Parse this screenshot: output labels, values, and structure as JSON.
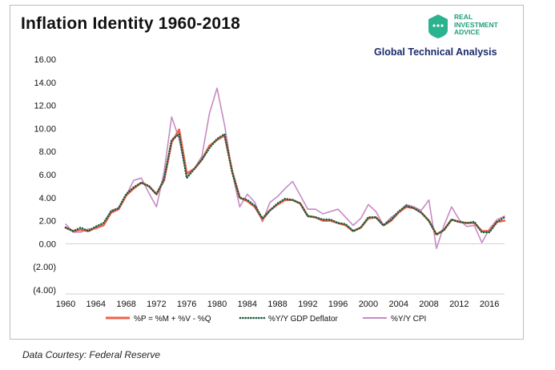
{
  "title": "Inflation Identity 1960-2018",
  "brand": {
    "line1": "REAL",
    "line2": "INVESTMENT",
    "line3": "ADVICE",
    "color": "#1f9e7a"
  },
  "subtitle": "Global Technical Analysis",
  "footnote": "Data Courtesy: Federal Reserve",
  "chart_data": {
    "type": "line",
    "xlim": [
      1960,
      2018
    ],
    "ylim": [
      -4,
      16
    ],
    "x_ticks": [
      1960,
      1964,
      1968,
      1972,
      1976,
      1980,
      1984,
      1988,
      1992,
      1996,
      2000,
      2004,
      2008,
      2012,
      2016
    ],
    "y_ticks": [
      -4,
      -2,
      0,
      2,
      4,
      6,
      8,
      10,
      12,
      14,
      16
    ],
    "y_tick_labels": [
      "(4.00)",
      "(2.00)",
      "0.00",
      "2.00",
      "4.00",
      "6.00",
      "8.00",
      "10.00",
      "12.00",
      "14.00",
      "16.00"
    ],
    "grid": false,
    "legend_position": "bottom",
    "series": [
      {
        "name": "%P = %M + %V - %Q",
        "color": "#f0604a",
        "style": "solid",
        "points": [
          [
            1960,
            1.4
          ],
          [
            1961,
            1.1
          ],
          [
            1962,
            1.2
          ],
          [
            1963,
            1.1
          ],
          [
            1964,
            1.4
          ],
          [
            1965,
            1.6
          ],
          [
            1966,
            2.7
          ],
          [
            1967,
            3.0
          ],
          [
            1968,
            4.2
          ],
          [
            1969,
            4.8
          ],
          [
            1970,
            5.3
          ],
          [
            1971,
            5.0
          ],
          [
            1972,
            4.3
          ],
          [
            1973,
            5.5
          ],
          [
            1974,
            8.8
          ],
          [
            1975,
            9.9
          ],
          [
            1976,
            6.1
          ],
          [
            1977,
            6.5
          ],
          [
            1978,
            7.3
          ],
          [
            1979,
            8.5
          ],
          [
            1980,
            9.0
          ],
          [
            1981,
            9.4
          ],
          [
            1982,
            6.3
          ],
          [
            1983,
            4.0
          ],
          [
            1984,
            3.7
          ],
          [
            1985,
            3.2
          ],
          [
            1986,
            2.1
          ],
          [
            1987,
            2.9
          ],
          [
            1988,
            3.4
          ],
          [
            1989,
            3.8
          ],
          [
            1990,
            3.8
          ],
          [
            1991,
            3.5
          ],
          [
            1992,
            2.4
          ],
          [
            1993,
            2.3
          ],
          [
            1994,
            2.0
          ],
          [
            1995,
            2.0
          ],
          [
            1996,
            1.8
          ],
          [
            1997,
            1.6
          ],
          [
            1998,
            1.1
          ],
          [
            1999,
            1.4
          ],
          [
            2000,
            2.2
          ],
          [
            2001,
            2.3
          ],
          [
            2002,
            1.6
          ],
          [
            2003,
            2.0
          ],
          [
            2004,
            2.7
          ],
          [
            2005,
            3.2
          ],
          [
            2006,
            3.1
          ],
          [
            2007,
            2.7
          ],
          [
            2008,
            2.0
          ],
          [
            2009,
            0.8
          ],
          [
            2010,
            1.2
          ],
          [
            2011,
            2.1
          ],
          [
            2012,
            1.9
          ],
          [
            2013,
            1.8
          ],
          [
            2014,
            1.8
          ],
          [
            2015,
            1.1
          ],
          [
            2016,
            1.1
          ],
          [
            2017,
            1.9
          ],
          [
            2018,
            2.0
          ]
        ]
      },
      {
        "name": "%Y/Y GDP Deflator",
        "color": "#1d5c3c",
        "style": "dotted",
        "points": [
          [
            1960,
            1.4
          ],
          [
            1961,
            1.1
          ],
          [
            1962,
            1.4
          ],
          [
            1963,
            1.1
          ],
          [
            1964,
            1.5
          ],
          [
            1965,
            1.8
          ],
          [
            1966,
            2.8
          ],
          [
            1967,
            3.1
          ],
          [
            1968,
            4.3
          ],
          [
            1969,
            4.9
          ],
          [
            1970,
            5.3
          ],
          [
            1971,
            5.0
          ],
          [
            1972,
            4.3
          ],
          [
            1973,
            5.6
          ],
          [
            1974,
            9.0
          ],
          [
            1975,
            9.5
          ],
          [
            1976,
            5.7
          ],
          [
            1977,
            6.5
          ],
          [
            1978,
            7.3
          ],
          [
            1979,
            8.3
          ],
          [
            1980,
            9.1
          ],
          [
            1981,
            9.5
          ],
          [
            1982,
            6.2
          ],
          [
            1983,
            4.0
          ],
          [
            1984,
            3.8
          ],
          [
            1985,
            3.3
          ],
          [
            1986,
            2.2
          ],
          [
            1987,
            2.9
          ],
          [
            1988,
            3.5
          ],
          [
            1989,
            3.9
          ],
          [
            1990,
            3.8
          ],
          [
            1991,
            3.5
          ],
          [
            1992,
            2.4
          ],
          [
            1993,
            2.3
          ],
          [
            1994,
            2.1
          ],
          [
            1995,
            2.1
          ],
          [
            1996,
            1.8
          ],
          [
            1997,
            1.7
          ],
          [
            1998,
            1.1
          ],
          [
            1999,
            1.4
          ],
          [
            2000,
            2.3
          ],
          [
            2001,
            2.3
          ],
          [
            2002,
            1.6
          ],
          [
            2003,
            2.1
          ],
          [
            2004,
            2.8
          ],
          [
            2005,
            3.3
          ],
          [
            2006,
            3.1
          ],
          [
            2007,
            2.7
          ],
          [
            2008,
            2.0
          ],
          [
            2009,
            0.8
          ],
          [
            2010,
            1.2
          ],
          [
            2011,
            2.1
          ],
          [
            2012,
            1.9
          ],
          [
            2013,
            1.8
          ],
          [
            2014,
            1.9
          ],
          [
            2015,
            1.0
          ],
          [
            2016,
            1.0
          ],
          [
            2017,
            1.9
          ],
          [
            2018,
            2.3
          ]
        ]
      },
      {
        "name": "%Y/Y CPI",
        "color": "#c68bc4",
        "style": "solid",
        "points": [
          [
            1960,
            1.7
          ],
          [
            1961,
            1.0
          ],
          [
            1962,
            1.0
          ],
          [
            1963,
            1.3
          ],
          [
            1964,
            1.3
          ],
          [
            1965,
            1.6
          ],
          [
            1966,
            2.9
          ],
          [
            1967,
            3.1
          ],
          [
            1968,
            4.2
          ],
          [
            1969,
            5.5
          ],
          [
            1970,
            5.7
          ],
          [
            1971,
            4.4
          ],
          [
            1972,
            3.2
          ],
          [
            1973,
            6.2
          ],
          [
            1974,
            11.0
          ],
          [
            1975,
            9.1
          ],
          [
            1976,
            5.8
          ],
          [
            1977,
            6.5
          ],
          [
            1978,
            7.6
          ],
          [
            1979,
            11.3
          ],
          [
            1980,
            13.5
          ],
          [
            1981,
            10.3
          ],
          [
            1982,
            6.2
          ],
          [
            1983,
            3.2
          ],
          [
            1984,
            4.3
          ],
          [
            1985,
            3.6
          ],
          [
            1986,
            1.9
          ],
          [
            1987,
            3.6
          ],
          [
            1988,
            4.1
          ],
          [
            1989,
            4.8
          ],
          [
            1990,
            5.4
          ],
          [
            1991,
            4.2
          ],
          [
            1992,
            3.0
          ],
          [
            1993,
            3.0
          ],
          [
            1994,
            2.6
          ],
          [
            1995,
            2.8
          ],
          [
            1996,
            3.0
          ],
          [
            1997,
            2.3
          ],
          [
            1998,
            1.6
          ],
          [
            1999,
            2.2
          ],
          [
            2000,
            3.4
          ],
          [
            2001,
            2.8
          ],
          [
            2002,
            1.6
          ],
          [
            2003,
            2.3
          ],
          [
            2004,
            2.7
          ],
          [
            2005,
            3.4
          ],
          [
            2006,
            3.2
          ],
          [
            2007,
            2.9
          ],
          [
            2008,
            3.8
          ],
          [
            2009,
            -0.4
          ],
          [
            2010,
            1.6
          ],
          [
            2011,
            3.2
          ],
          [
            2012,
            2.1
          ],
          [
            2013,
            1.5
          ],
          [
            2014,
            1.6
          ],
          [
            2015,
            0.1
          ],
          [
            2016,
            1.3
          ],
          [
            2017,
            2.1
          ],
          [
            2018,
            2.4
          ]
        ]
      }
    ]
  }
}
